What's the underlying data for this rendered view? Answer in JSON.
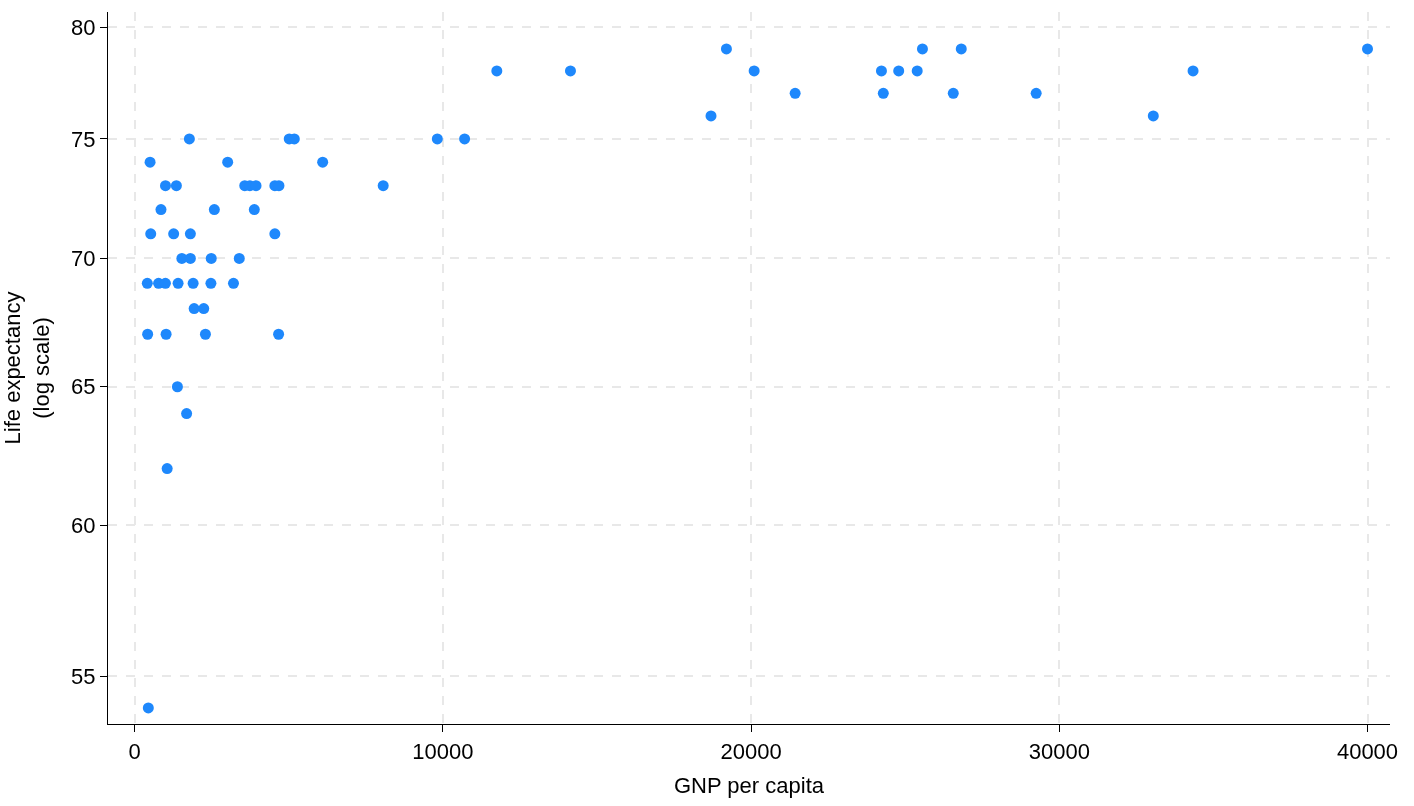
{
  "chart_data": {
    "type": "scatter",
    "xlabel": "GNP per capita",
    "ylabel": "Life expectancy\n(log scale)",
    "x": [
      1775,
      5015,
      5180,
      9820,
      10705,
      500,
      3018,
      6100,
      1000,
      1354,
      3572,
      3738,
      3938,
      4549,
      4682,
      8064,
      854,
      2585,
      3882,
      521,
      1265,
      1808,
      4549,
      1531,
      1808,
      2485,
      3394,
      410,
      776,
      998,
      1409,
      1897,
      2474,
      3206,
      1930,
      2241,
      421,
      1020,
      2296,
      4670,
      1387,
      1686,
      1054,
      443,
      11750,
      14140,
      20100,
      24230,
      24790,
      25390,
      34340,
      19200,
      25560,
      26820,
      40000,
      21430,
      24290,
      26560,
      29250,
      18700,
      33050
    ],
    "values": [
      75,
      75,
      75,
      75,
      75,
      74,
      74,
      74,
      73,
      73,
      73,
      73,
      73,
      73,
      73,
      73,
      72,
      72,
      72,
      71,
      71,
      71,
      71,
      70,
      70,
      70,
      70,
      69,
      69,
      69,
      69,
      69,
      69,
      69,
      68,
      68,
      67,
      67,
      67,
      67,
      65,
      64,
      62,
      54,
      78,
      78,
      78,
      78,
      78,
      78,
      78,
      79,
      79,
      79,
      79,
      77,
      77,
      77,
      77,
      76,
      76
    ],
    "color": "#1e88fc",
    "marker": "circle",
    "log": "y",
    "xlim": [
      -865,
      40730
    ],
    "ylim": [
      53.5,
      80.7
    ],
    "xticks": [
      0,
      10000,
      20000,
      30000,
      40000
    ],
    "yticks": [
      55,
      60,
      65,
      70,
      75,
      80
    ],
    "grid": true,
    "legend": false
  }
}
